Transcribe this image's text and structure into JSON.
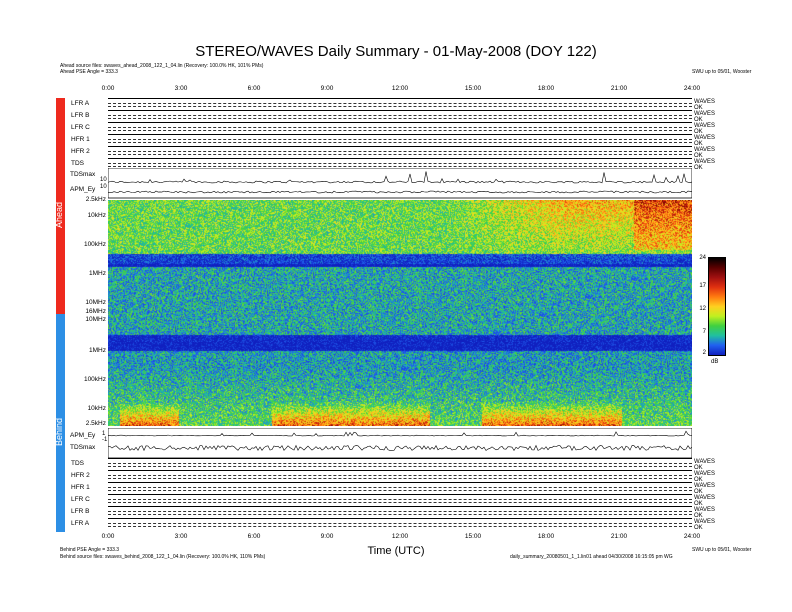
{
  "title": "STEREO/WAVES Daily Summary - 01-May-2008 (DOY 122)",
  "header": {
    "ahead_source": "Ahead source files: swaves_ahead_2008_122_1_04.lin (Recovery: 100.0% HK, 101% PMs)",
    "ahead_pse_angle": "Ahead PSE Angle = 333.3",
    "top_right": "SWU up to 05/01, Wooster"
  },
  "footer": {
    "behind_pse_angle": "Behind PSE Angle = 333.3",
    "behind_source": "Behind source files: swaves_behind_2008_122_1_04.lin (Recovery: 100.0% HK, 110% PMs)",
    "right_line1": "SWU up to 05/01, Wooster",
    "right_line2": "daily_summary_20080501_1_1.lin01 ahead 04/30/2008 16:15:05 pm WG"
  },
  "spacecraft": {
    "ahead": {
      "label": "Ahead",
      "color": "#ee2a1e"
    },
    "behind": {
      "label": "Behind",
      "color": "#2d8fe5"
    }
  },
  "time_ticks_top": [
    "0:00",
    "3:00",
    "6:00",
    "9:00",
    "12:00",
    "15:00",
    "18:00",
    "21:00",
    "24:00"
  ],
  "time_ticks_bottom": [
    "0:00",
    "3:00",
    "6:00",
    "9:00",
    "12:00",
    "15:00",
    "18:00",
    "21:00",
    "24:00"
  ],
  "xlabel": "Time (UTC)",
  "ahead_strips": [
    {
      "label": "LFR A",
      "right": "WAVES\nOK"
    },
    {
      "label": "LFR B",
      "right": "WAVES\nOK"
    },
    {
      "label": "LFR C",
      "right": "WAVES\nOK"
    },
    {
      "label": "HFR 1",
      "right": "WAVES\nOK"
    },
    {
      "label": "HFR 2",
      "right": "WAVES\nOK"
    },
    {
      "label": "TDS",
      "right": "WAVES\nOK"
    }
  ],
  "behind_strips": [
    {
      "label": "TDS",
      "right": "WAVES\nOK"
    },
    {
      "label": "HFR 2",
      "right": "WAVES\nOK"
    },
    {
      "label": "HFR 1",
      "right": "WAVES\nOK"
    },
    {
      "label": "LFR C",
      "right": "WAVES\nOK"
    },
    {
      "label": "LFR B",
      "right": "WAVES\nOK"
    },
    {
      "label": "LFR A",
      "right": "WAVES\nOK"
    }
  ],
  "tdsmax_label": "TDSmax",
  "apm_label": "APM_Ey",
  "tdsmax_ticks": [
    "10",
    "10"
  ],
  "apm_ticks": [
    "1",
    "-1"
  ],
  "freq_ticks_ahead": [
    "2.5kHz",
    "10kHz",
    "100kHz",
    "1MHz",
    "10MHz",
    "16MHz"
  ],
  "freq_ticks_behind": [
    "10MHz",
    "1MHz",
    "100kHz",
    "10kHz",
    "2.5kHz"
  ],
  "colorbar": {
    "ticks": [
      "24",
      "17",
      "12",
      "7",
      "2"
    ],
    "unit": "dB",
    "colors": [
      "#000000",
      "#5a0000",
      "#a01010",
      "#e03010",
      "#ff7a10",
      "#ffd020",
      "#c0f020",
      "#40d040",
      "#20c0a0",
      "#2060f0",
      "#1020c0"
    ]
  },
  "chart_data": {
    "type": "heatmap",
    "title": "STEREO/WAVES Daily Summary - 01-May-2008 (DOY 122)",
    "xlabel": "Time (UTC)",
    "xlim": [
      "0:00",
      "24:00"
    ],
    "panels": [
      {
        "name": "Ahead",
        "y_axis": "frequency",
        "ylim": [
          "2.5kHz",
          "16MHz"
        ],
        "y_scale": "log"
      },
      {
        "name": "Behind",
        "y_axis": "frequency",
        "ylim": [
          "2.5kHz",
          "16MHz"
        ],
        "y_scale": "log"
      }
    ],
    "colorbar": {
      "unit": "dB",
      "range": [
        2,
        24
      ]
    }
  }
}
